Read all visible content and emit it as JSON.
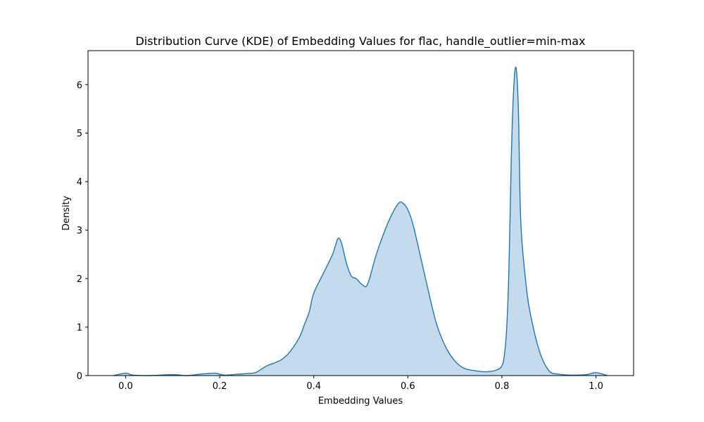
{
  "chart_data": {
    "type": "area",
    "title": "Distribution Curve (KDE) of Embedding Values for flac, handle_outlier=min-max",
    "xlabel": "Embedding Values",
    "ylabel": "Density",
    "xlim": [
      -0.08,
      1.08
    ],
    "ylim": [
      0,
      6.7
    ],
    "xticks": [
      0.0,
      0.2,
      0.4,
      0.6,
      0.8,
      1.0
    ],
    "xtick_labels": [
      "0.0",
      "0.2",
      "0.4",
      "0.6",
      "0.8",
      "1.0"
    ],
    "yticks": [
      0,
      1,
      2,
      3,
      4,
      5,
      6
    ],
    "ytick_labels": [
      "0",
      "1",
      "2",
      "3",
      "4",
      "5",
      "6"
    ],
    "grid": false,
    "series": [
      {
        "color": "#1f77b4",
        "fill_color": "#c5daec",
        "x": [
          -0.025,
          0.0,
          0.015,
          0.05,
          0.1,
          0.13,
          0.16,
          0.19,
          0.21,
          0.24,
          0.27,
          0.28,
          0.3,
          0.33,
          0.35,
          0.37,
          0.38,
          0.39,
          0.4,
          0.42,
          0.44,
          0.45,
          0.455,
          0.46,
          0.47,
          0.48,
          0.49,
          0.5,
          0.51,
          0.515,
          0.52,
          0.53,
          0.54,
          0.56,
          0.58,
          0.59,
          0.6,
          0.61,
          0.62,
          0.64,
          0.66,
          0.68,
          0.7,
          0.72,
          0.75,
          0.77,
          0.79,
          0.8,
          0.805,
          0.81,
          0.815,
          0.82,
          0.825,
          0.83,
          0.835,
          0.84,
          0.85,
          0.86,
          0.88,
          0.9,
          0.92,
          0.95,
          0.98,
          1.0,
          1.025
        ],
        "y": [
          0.0,
          0.05,
          0.01,
          0.0,
          0.02,
          0.0,
          0.03,
          0.05,
          0.01,
          0.03,
          0.05,
          0.08,
          0.2,
          0.32,
          0.5,
          0.8,
          1.05,
          1.3,
          1.7,
          2.1,
          2.5,
          2.8,
          2.82,
          2.7,
          2.3,
          2.05,
          2.0,
          1.9,
          1.83,
          1.9,
          2.05,
          2.4,
          2.7,
          3.2,
          3.55,
          3.55,
          3.42,
          3.15,
          2.75,
          1.9,
          1.1,
          0.6,
          0.3,
          0.15,
          0.09,
          0.08,
          0.12,
          0.2,
          0.4,
          0.95,
          2.2,
          4.5,
          5.9,
          6.35,
          5.5,
          3.2,
          2.0,
          1.3,
          0.5,
          0.1,
          0.03,
          0.01,
          0.02,
          0.06,
          0.0
        ]
      }
    ]
  }
}
